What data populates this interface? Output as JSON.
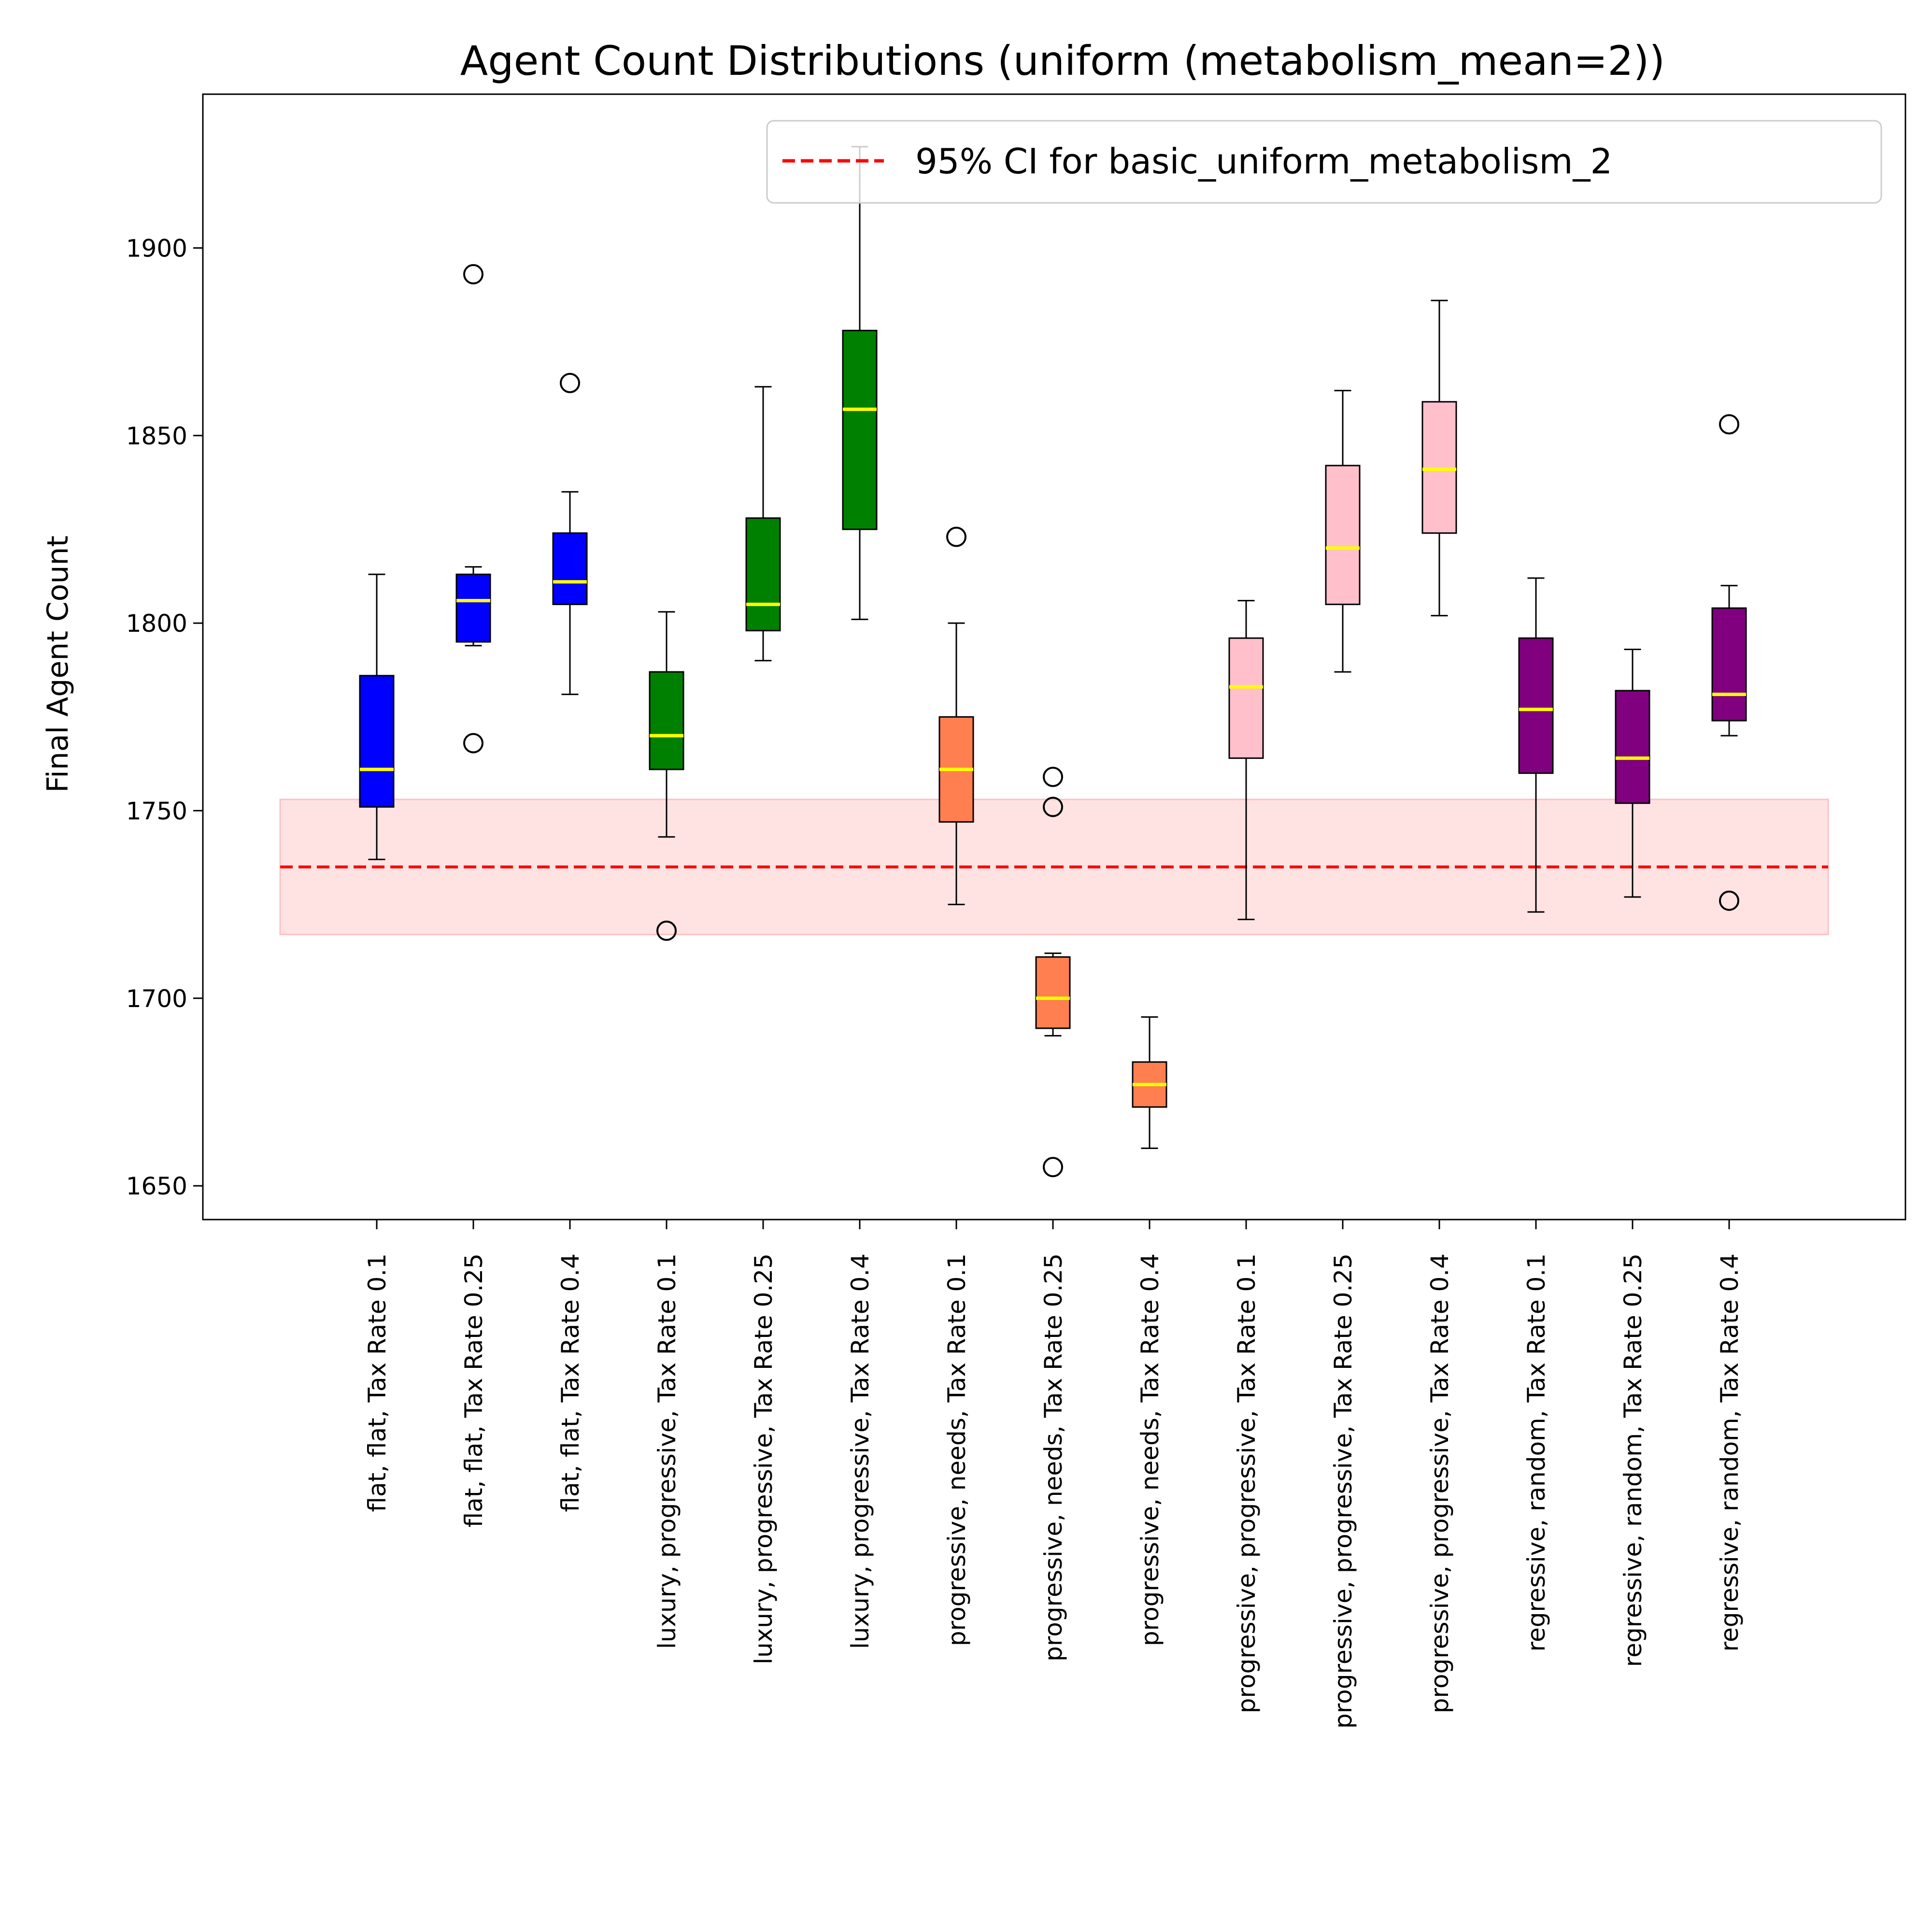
{
  "chart_data": {
    "type": "box",
    "title": "Agent Count Distributions (uniform (metabolism_mean=2))",
    "xlabel": "",
    "ylabel": "Final Agent Count",
    "ylim": [
      1641,
      1941
    ],
    "yticks": [
      1650,
      1700,
      1750,
      1800,
      1850,
      1900
    ],
    "legend": {
      "location": "upper-right",
      "label": "95% CI for basic_uniform_metabolism_2"
    },
    "reference": {
      "mean": 1735,
      "ci_low": 1717,
      "ci_high": 1753,
      "line_color": "#ff0000",
      "band_color": "#ffc0c0"
    },
    "median_color": "#ffff00",
    "categories": [
      "flat, flat, Tax Rate 0.1",
      "flat, flat, Tax Rate 0.25",
      "flat, flat, Tax Rate 0.4",
      "luxury, progressive, Tax Rate 0.1",
      "luxury, progressive, Tax Rate 0.25",
      "luxury, progressive, Tax Rate 0.4",
      "progressive, needs, Tax Rate 0.1",
      "progressive, needs, Tax Rate 0.25",
      "progressive, needs, Tax Rate 0.4",
      "progressive, progressive, Tax Rate 0.1",
      "progressive, progressive, Tax Rate 0.25",
      "progressive, progressive, Tax Rate 0.4",
      "regressive, random, Tax Rate 0.1",
      "regressive, random, Tax Rate 0.25",
      "regressive, random, Tax Rate 0.4"
    ],
    "boxes": [
      {
        "whisker_low": 1737,
        "q1": 1751,
        "median": 1761,
        "q3": 1786,
        "whisker_high": 1813,
        "outliers": [],
        "color": "#0000ff"
      },
      {
        "whisker_low": 1794,
        "q1": 1795,
        "median": 1806,
        "q3": 1813,
        "whisker_high": 1815,
        "outliers": [
          1893,
          1768
        ],
        "color": "#0000ff"
      },
      {
        "whisker_low": 1781,
        "q1": 1805,
        "median": 1811,
        "q3": 1824,
        "whisker_high": 1835,
        "outliers": [
          1864
        ],
        "color": "#0000ff"
      },
      {
        "whisker_low": 1743,
        "q1": 1761,
        "median": 1770,
        "q3": 1787,
        "whisker_high": 1803,
        "outliers": [
          1718
        ],
        "color": "#008000"
      },
      {
        "whisker_low": 1790,
        "q1": 1798,
        "median": 1805,
        "q3": 1828,
        "whisker_high": 1863,
        "outliers": [],
        "color": "#008000"
      },
      {
        "whisker_low": 1801,
        "q1": 1825,
        "median": 1857,
        "q3": 1878,
        "whisker_high": 1927,
        "outliers": [],
        "color": "#008000"
      },
      {
        "whisker_low": 1725,
        "q1": 1747,
        "median": 1761,
        "q3": 1775,
        "whisker_high": 1800,
        "outliers": [
          1823
        ],
        "color": "#ff7f50"
      },
      {
        "whisker_low": 1690,
        "q1": 1692,
        "median": 1700,
        "q3": 1711,
        "whisker_high": 1712,
        "outliers": [
          1759,
          1751,
          1655
        ],
        "color": "#ff7f50"
      },
      {
        "whisker_low": 1660,
        "q1": 1671,
        "median": 1677,
        "q3": 1683,
        "whisker_high": 1695,
        "outliers": [],
        "color": "#ff7f50"
      },
      {
        "whisker_low": 1721,
        "q1": 1764,
        "median": 1783,
        "q3": 1796,
        "whisker_high": 1806,
        "outliers": [],
        "color": "#ffc0cb"
      },
      {
        "whisker_low": 1787,
        "q1": 1805,
        "median": 1820,
        "q3": 1842,
        "whisker_high": 1862,
        "outliers": [],
        "color": "#ffc0cb"
      },
      {
        "whisker_low": 1802,
        "q1": 1824,
        "median": 1841,
        "q3": 1859,
        "whisker_high": 1886,
        "outliers": [],
        "color": "#ffc0cb"
      },
      {
        "whisker_low": 1723,
        "q1": 1760,
        "median": 1777,
        "q3": 1796,
        "whisker_high": 1812,
        "outliers": [],
        "color": "#800080"
      },
      {
        "whisker_low": 1727,
        "q1": 1752,
        "median": 1764,
        "q3": 1782,
        "whisker_high": 1793,
        "outliers": [],
        "color": "#800080"
      },
      {
        "whisker_low": 1770,
        "q1": 1774,
        "median": 1781,
        "q3": 1804,
        "whisker_high": 1810,
        "outliers": [
          1853,
          1726
        ],
        "color": "#800080"
      }
    ]
  }
}
